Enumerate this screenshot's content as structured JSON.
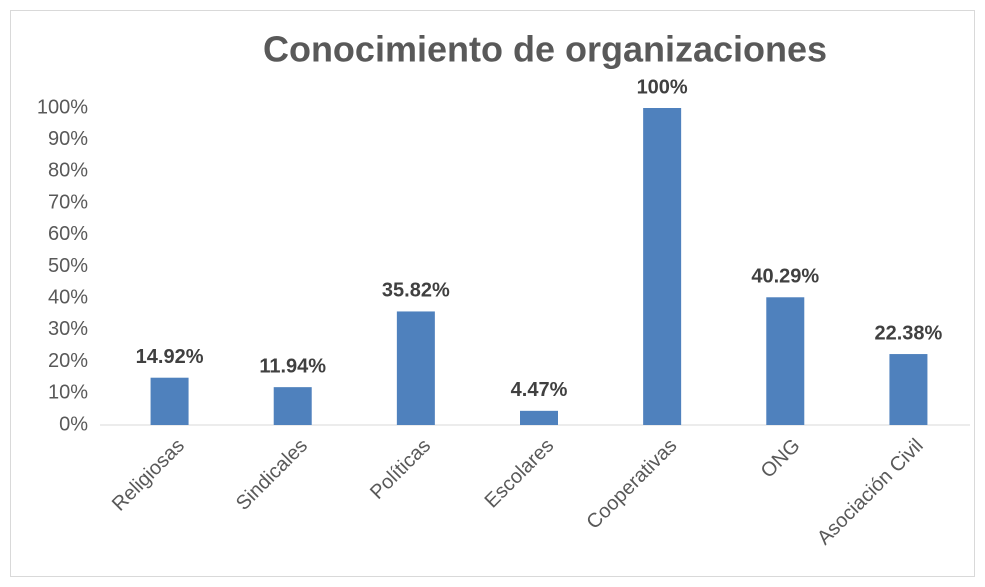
{
  "chart_data": {
    "type": "bar",
    "title": "Conocimiento de organizaciones",
    "categories": [
      "Religiosas",
      "Sindicales",
      "Políticas",
      "Escolares",
      "Cooperativas",
      "ONG",
      "Asociación Civil"
    ],
    "values": [
      14.92,
      11.94,
      35.82,
      4.47,
      100,
      40.29,
      22.38
    ],
    "value_labels": [
      "14.92%",
      "11.94%",
      "35.82%",
      "4.47%",
      "100%",
      "40.29%",
      "22.38%"
    ],
    "color": "#4f81bd",
    "ylim": [
      0,
      100
    ],
    "yticks": [
      {
        "value": 0,
        "label": "0%"
      },
      {
        "value": 10,
        "label": "10%"
      },
      {
        "value": 20,
        "label": "20%"
      },
      {
        "value": 30,
        "label": "30%"
      },
      {
        "value": 40,
        "label": "40%"
      },
      {
        "value": 50,
        "label": "50%"
      },
      {
        "value": 60,
        "label": "60%"
      },
      {
        "value": 70,
        "label": "70%"
      },
      {
        "value": 80,
        "label": "80%"
      },
      {
        "value": 90,
        "label": "90%"
      },
      {
        "value": 100,
        "label": "100%"
      }
    ],
    "grid": false
  }
}
